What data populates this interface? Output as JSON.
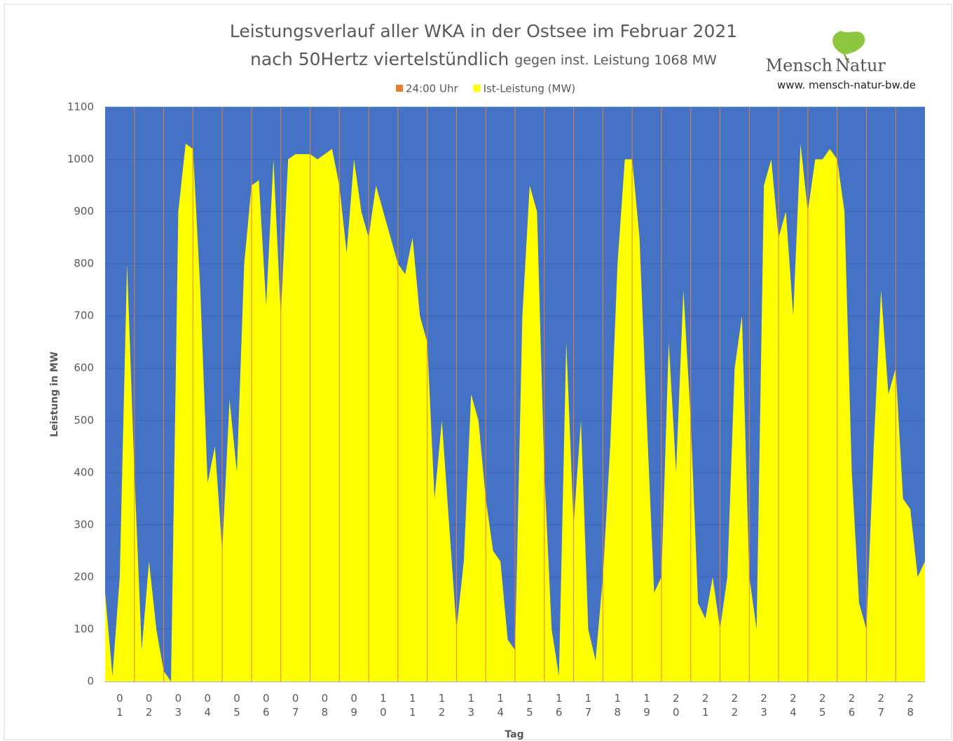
{
  "chart_data": {
    "type": "area",
    "title": "Leistungsverlauf aller WKA in der Ostsee im Februar 2021",
    "subtitle": "nach 50Hertz viertelstündlich",
    "subtitle_note": "gegen inst. Leistung 1068 MW",
    "logo": {
      "left": "Mensch",
      "right": "Natur",
      "url": "www. mensch-natur-bw.de"
    },
    "y_label": "Leistung in MW",
    "x_label": "Tag",
    "xlim": [
      0,
      28
    ],
    "ylim": [
      0,
      1100
    ],
    "yticks": [
      0,
      100,
      200,
      300,
      400,
      500,
      600,
      700,
      800,
      900,
      1000,
      1100
    ],
    "grid": true,
    "background": "#4472c4",
    "legend": "top",
    "xticks": [
      {
        "value": 0.5,
        "label": "01"
      },
      {
        "value": 1.5,
        "label": "02"
      },
      {
        "value": 2.5,
        "label": "03"
      },
      {
        "value": 3.5,
        "label": "04"
      },
      {
        "value": 4.5,
        "label": "05"
      },
      {
        "value": 5.5,
        "label": "06"
      },
      {
        "value": 6.5,
        "label": "07"
      },
      {
        "value": 7.5,
        "label": "08"
      },
      {
        "value": 8.5,
        "label": "09"
      },
      {
        "value": 9.5,
        "label": "10"
      },
      {
        "value": 10.5,
        "label": "11"
      },
      {
        "value": 11.5,
        "label": "12"
      },
      {
        "value": 12.5,
        "label": "13"
      },
      {
        "value": 13.5,
        "label": "14"
      },
      {
        "value": 14.5,
        "label": "15"
      },
      {
        "value": 15.5,
        "label": "16"
      },
      {
        "value": 16.5,
        "label": "17"
      },
      {
        "value": 17.5,
        "label": "18"
      },
      {
        "value": 18.5,
        "label": "19"
      },
      {
        "value": 19.5,
        "label": "20"
      },
      {
        "value": 20.5,
        "label": "21"
      },
      {
        "value": 21.5,
        "label": "22"
      },
      {
        "value": 22.5,
        "label": "23"
      },
      {
        "value": 23.5,
        "label": "24"
      },
      {
        "value": 24.5,
        "label": "25"
      },
      {
        "value": 25.5,
        "label": "26"
      },
      {
        "value": 26.5,
        "label": "27"
      },
      {
        "value": 27.5,
        "label": "28"
      }
    ],
    "series": [
      {
        "name": "24:00 Uhr",
        "color": "#ed7d31",
        "x": [
          1,
          2,
          3,
          4,
          5,
          6,
          7,
          8,
          9,
          10,
          11,
          12,
          13,
          14,
          15,
          16,
          17,
          18,
          19,
          20,
          21,
          22,
          23,
          24,
          25,
          26,
          27
        ],
        "values": [
          1100,
          1100,
          1100,
          1100,
          1100,
          1100,
          1100,
          1100,
          1100,
          1100,
          1100,
          1100,
          1100,
          1100,
          1100,
          1100,
          1100,
          1100,
          1100,
          1100,
          1100,
          1100,
          1100,
          1100,
          1100,
          1100,
          1100
        ]
      },
      {
        "name": "Ist-Leistung (MW)",
        "color": "#ffff00",
        "x": [
          0,
          0.25,
          0.5,
          0.75,
          1,
          1.25,
          1.5,
          1.75,
          2,
          2.25,
          2.5,
          2.75,
          3,
          3.25,
          3.5,
          3.75,
          4,
          4.25,
          4.5,
          4.75,
          5,
          5.25,
          5.5,
          5.75,
          6,
          6.25,
          6.5,
          6.75,
          7,
          7.25,
          7.5,
          7.75,
          8,
          8.25,
          8.5,
          8.75,
          9,
          9.25,
          9.5,
          9.75,
          10,
          10.25,
          10.5,
          10.75,
          11,
          11.25,
          11.5,
          11.75,
          12,
          12.25,
          12.5,
          12.75,
          13,
          13.25,
          13.5,
          13.75,
          14,
          14.25,
          14.5,
          14.75,
          15,
          15.25,
          15.5,
          15.75,
          16,
          16.25,
          16.5,
          16.75,
          17,
          17.25,
          17.5,
          17.75,
          18,
          18.25,
          18.5,
          18.75,
          19,
          19.25,
          19.5,
          19.75,
          20,
          20.25,
          20.5,
          20.75,
          21,
          21.25,
          21.5,
          21.75,
          22,
          22.25,
          22.5,
          22.75,
          23,
          23.25,
          23.5,
          23.75,
          24,
          24.25,
          24.5,
          24.75,
          25,
          25.25,
          25.5,
          25.75,
          26,
          26.25,
          26.5,
          26.75,
          27,
          27.25,
          27.5,
          27.75,
          28
        ],
        "values": [
          170,
          10,
          200,
          800,
          400,
          60,
          230,
          100,
          20,
          0,
          900,
          1030,
          1020,
          750,
          380,
          450,
          250,
          540,
          400,
          800,
          950,
          960,
          720,
          1000,
          700,
          1000,
          1010,
          1010,
          1010,
          1000,
          1010,
          1020,
          950,
          820,
          1000,
          900,
          850,
          950,
          900,
          850,
          800,
          780,
          850,
          700,
          650,
          350,
          500,
          300,
          100,
          230,
          550,
          500,
          350,
          250,
          230,
          80,
          60,
          700,
          950,
          900,
          400,
          100,
          10,
          650,
          300,
          500,
          100,
          40,
          200,
          450,
          800,
          1000,
          1000,
          850,
          500,
          170,
          200,
          650,
          400,
          750,
          500,
          150,
          120,
          200,
          100,
          200,
          600,
          700,
          200,
          100,
          950,
          1000,
          850,
          900,
          700,
          1030,
          900,
          1000,
          1000,
          1020,
          1000,
          900,
          400,
          150,
          100,
          450,
          750,
          550,
          600,
          350,
          330,
          200,
          230
        ]
      }
    ]
  }
}
